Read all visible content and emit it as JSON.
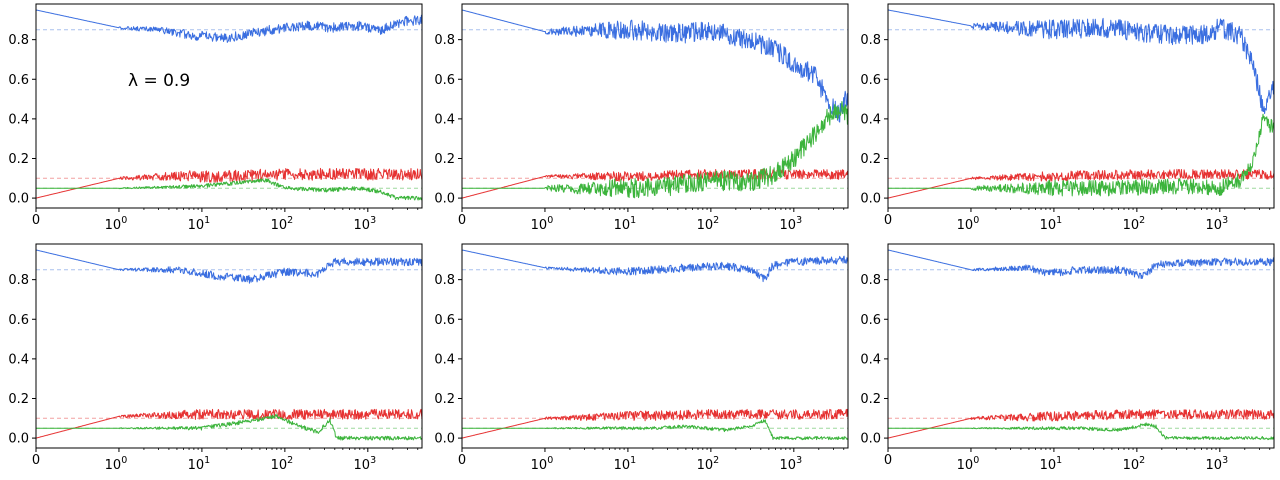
{
  "figure": {
    "x_ticks": [
      {
        "value": 0,
        "label": "0"
      },
      {
        "value": 1,
        "label": "10^0"
      },
      {
        "value": 10,
        "label": "10^1"
      },
      {
        "value": 100,
        "label": "10^2"
      },
      {
        "value": 1000,
        "label": "10^3"
      }
    ],
    "y_ticks": [
      "0.0",
      "0.2",
      "0.4",
      "0.6",
      "0.8"
    ],
    "colors": {
      "blue": "#3a6ee0",
      "red": "#e63232",
      "green": "#3cb43c",
      "blue_ref": "#a9c0ee",
      "red_ref": "#f2a0a0",
      "green_ref": "#9ed89e"
    }
  },
  "chart_data": [
    {
      "type": "line",
      "panel": "top-left",
      "annotation": "λ = 0.9",
      "xscale": "symlog",
      "xlim": [
        0,
        4500
      ],
      "ylim": [
        -0.05,
        0.98
      ],
      "reference_levels": {
        "blue": 0.85,
        "red": 0.1,
        "green": 0.05
      },
      "series": [
        {
          "color": "blue",
          "points": [
            [
              0,
              0.95
            ],
            [
              1,
              0.86
            ],
            [
              3,
              0.85
            ],
            [
              8,
              0.82
            ],
            [
              20,
              0.81
            ],
            [
              50,
              0.84
            ],
            [
              100,
              0.86
            ],
            [
              200,
              0.87
            ],
            [
              400,
              0.86
            ],
            [
              800,
              0.87
            ],
            [
              1500,
              0.85
            ],
            [
              2500,
              0.89
            ],
            [
              4500,
              0.9
            ]
          ],
          "noise": 0.025
        },
        {
          "color": "red",
          "points": [
            [
              0,
              0.0
            ],
            [
              1,
              0.1
            ],
            [
              5,
              0.11
            ],
            [
              20,
              0.11
            ],
            [
              100,
              0.12
            ],
            [
              1000,
              0.12
            ],
            [
              4500,
              0.12
            ]
          ],
          "noise": 0.03
        },
        {
          "color": "green",
          "points": [
            [
              0,
              0.05
            ],
            [
              1,
              0.05
            ],
            [
              10,
              0.06
            ],
            [
              30,
              0.08
            ],
            [
              60,
              0.09
            ],
            [
              100,
              0.05
            ],
            [
              300,
              0.04
            ],
            [
              800,
              0.05
            ],
            [
              1500,
              0.03
            ],
            [
              2200,
              0.0
            ],
            [
              4500,
              0.0
            ]
          ],
          "noise": 0.01
        }
      ]
    },
    {
      "type": "line",
      "panel": "top-center",
      "xscale": "symlog",
      "xlim": [
        0,
        4500
      ],
      "ylim": [
        -0.05,
        0.98
      ],
      "reference_levels": {
        "blue": 0.85,
        "red": 0.1,
        "green": 0.05
      },
      "series": [
        {
          "color": "blue",
          "points": [
            [
              0,
              0.95
            ],
            [
              1,
              0.84
            ],
            [
              10,
              0.85
            ],
            [
              50,
              0.83
            ],
            [
              100,
              0.85
            ],
            [
              200,
              0.81
            ],
            [
              500,
              0.77
            ],
            [
              1000,
              0.68
            ],
            [
              1800,
              0.62
            ],
            [
              2500,
              0.5
            ],
            [
              3500,
              0.42
            ],
            [
              4500,
              0.52
            ]
          ],
          "noise": 0.05
        },
        {
          "color": "red",
          "points": [
            [
              0,
              0.0
            ],
            [
              1,
              0.11
            ],
            [
              10,
              0.11
            ],
            [
              100,
              0.12
            ],
            [
              1000,
              0.12
            ],
            [
              4500,
              0.12
            ]
          ],
          "noise": 0.025
        },
        {
          "color": "green",
          "points": [
            [
              0,
              0.05
            ],
            [
              1,
              0.05
            ],
            [
              20,
              0.05
            ],
            [
              100,
              0.09
            ],
            [
              300,
              0.08
            ],
            [
              600,
              0.12
            ],
            [
              1000,
              0.2
            ],
            [
              1500,
              0.28
            ],
            [
              2500,
              0.4
            ],
            [
              3500,
              0.45
            ],
            [
              4500,
              0.42
            ]
          ],
          "noise": 0.05
        }
      ]
    },
    {
      "type": "line",
      "panel": "top-right",
      "xscale": "symlog",
      "xlim": [
        0,
        4500
      ],
      "ylim": [
        -0.05,
        0.98
      ],
      "reference_levels": {
        "blue": 0.85,
        "red": 0.1,
        "green": 0.05
      },
      "series": [
        {
          "color": "blue",
          "points": [
            [
              0,
              0.95
            ],
            [
              1,
              0.87
            ],
            [
              10,
              0.85
            ],
            [
              50,
              0.86
            ],
            [
              100,
              0.84
            ],
            [
              300,
              0.82
            ],
            [
              700,
              0.83
            ],
            [
              1000,
              0.86
            ],
            [
              1800,
              0.82
            ],
            [
              2600,
              0.65
            ],
            [
              3300,
              0.45
            ],
            [
              4500,
              0.58
            ]
          ],
          "noise": 0.05
        },
        {
          "color": "red",
          "points": [
            [
              0,
              0.0
            ],
            [
              1,
              0.1
            ],
            [
              10,
              0.11
            ],
            [
              100,
              0.12
            ],
            [
              1000,
              0.12
            ],
            [
              4500,
              0.12
            ]
          ],
          "noise": 0.025
        },
        {
          "color": "green",
          "points": [
            [
              0,
              0.05
            ],
            [
              1,
              0.05
            ],
            [
              50,
              0.05
            ],
            [
              300,
              0.06
            ],
            [
              1000,
              0.05
            ],
            [
              2000,
              0.1
            ],
            [
              2700,
              0.22
            ],
            [
              3300,
              0.4
            ],
            [
              4500,
              0.35
            ]
          ],
          "noise": 0.04
        }
      ]
    },
    {
      "type": "line",
      "panel": "bottom-left",
      "xscale": "symlog",
      "xlim": [
        0,
        4500
      ],
      "ylim": [
        -0.05,
        0.98
      ],
      "reference_levels": {
        "blue": 0.85,
        "red": 0.1,
        "green": 0.05
      },
      "series": [
        {
          "color": "blue",
          "points": [
            [
              0,
              0.95
            ],
            [
              1,
              0.85
            ],
            [
              5,
              0.85
            ],
            [
              15,
              0.82
            ],
            [
              40,
              0.8
            ],
            [
              100,
              0.84
            ],
            [
              250,
              0.83
            ],
            [
              400,
              0.89
            ],
            [
              1000,
              0.89
            ],
            [
              4500,
              0.89
            ]
          ],
          "noise": 0.02
        },
        {
          "color": "red",
          "points": [
            [
              0,
              0.0
            ],
            [
              1,
              0.11
            ],
            [
              10,
              0.12
            ],
            [
              100,
              0.12
            ],
            [
              1000,
              0.12
            ],
            [
              4500,
              0.12
            ]
          ],
          "noise": 0.025
        },
        {
          "color": "green",
          "points": [
            [
              0,
              0.05
            ],
            [
              1,
              0.05
            ],
            [
              10,
              0.05
            ],
            [
              30,
              0.08
            ],
            [
              80,
              0.11
            ],
            [
              150,
              0.06
            ],
            [
              250,
              0.03
            ],
            [
              350,
              0.09
            ],
            [
              420,
              0.0
            ],
            [
              4500,
              0.0
            ]
          ],
          "noise": 0.01
        }
      ]
    },
    {
      "type": "line",
      "panel": "bottom-center",
      "xscale": "symlog",
      "xlim": [
        0,
        4500
      ],
      "ylim": [
        -0.05,
        0.98
      ],
      "reference_levels": {
        "blue": 0.85,
        "red": 0.1,
        "green": 0.05
      },
      "series": [
        {
          "color": "blue",
          "points": [
            [
              0,
              0.95
            ],
            [
              1,
              0.86
            ],
            [
              10,
              0.84
            ],
            [
              50,
              0.86
            ],
            [
              150,
              0.87
            ],
            [
              300,
              0.85
            ],
            [
              450,
              0.8
            ],
            [
              550,
              0.87
            ],
            [
              1000,
              0.89
            ],
            [
              4500,
              0.9
            ]
          ],
          "noise": 0.02
        },
        {
          "color": "red",
          "points": [
            [
              0,
              0.0
            ],
            [
              1,
              0.1
            ],
            [
              10,
              0.11
            ],
            [
              100,
              0.12
            ],
            [
              1000,
              0.12
            ],
            [
              4500,
              0.12
            ]
          ],
          "noise": 0.025
        },
        {
          "color": "green",
          "points": [
            [
              0,
              0.05
            ],
            [
              1,
              0.05
            ],
            [
              20,
              0.05
            ],
            [
              50,
              0.06
            ],
            [
              150,
              0.04
            ],
            [
              300,
              0.06
            ],
            [
              450,
              0.09
            ],
            [
              560,
              0.0
            ],
            [
              4500,
              0.0
            ]
          ],
          "noise": 0.008
        }
      ]
    },
    {
      "type": "line",
      "panel": "bottom-right",
      "xscale": "symlog",
      "xlim": [
        0,
        4500
      ],
      "ylim": [
        -0.05,
        0.98
      ],
      "reference_levels": {
        "blue": 0.85,
        "red": 0.1,
        "green": 0.05
      },
      "series": [
        {
          "color": "blue",
          "points": [
            [
              0,
              0.95
            ],
            [
              1,
              0.85
            ],
            [
              5,
              0.86
            ],
            [
              8,
              0.83
            ],
            [
              20,
              0.85
            ],
            [
              60,
              0.85
            ],
            [
              120,
              0.82
            ],
            [
              180,
              0.88
            ],
            [
              1000,
              0.89
            ],
            [
              4500,
              0.89
            ]
          ],
          "noise": 0.02
        },
        {
          "color": "red",
          "points": [
            [
              0,
              0.0
            ],
            [
              1,
              0.1
            ],
            [
              10,
              0.11
            ],
            [
              100,
              0.12
            ],
            [
              1000,
              0.12
            ],
            [
              4500,
              0.12
            ]
          ],
          "noise": 0.025
        },
        {
          "color": "green",
          "points": [
            [
              0,
              0.05
            ],
            [
              1,
              0.05
            ],
            [
              20,
              0.05
            ],
            [
              60,
              0.04
            ],
            [
              130,
              0.07
            ],
            [
              170,
              0.06
            ],
            [
              220,
              0.0
            ],
            [
              4500,
              0.0
            ]
          ],
          "noise": 0.008
        }
      ]
    }
  ]
}
